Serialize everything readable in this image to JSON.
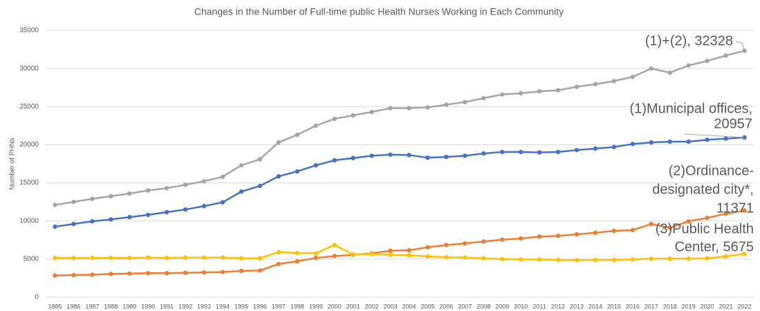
{
  "chart_data": {
    "type": "line",
    "title": "Changes in the Number of Full-time public Health Nurses Working in Each Community",
    "y_label": "Number of PHNs",
    "categories": [
      "1985",
      "1986",
      "1987",
      "1988",
      "1989",
      "1990",
      "1991",
      "1992",
      "1993",
      "1994",
      "1995",
      "1996",
      "1997",
      "1998",
      "1999",
      "2000",
      "2001",
      "2002",
      "2003",
      "2004",
      "2005",
      "2006",
      "2007",
      "2008",
      "2009",
      "2010",
      "2011",
      "2012",
      "2013",
      "2014",
      "2015",
      "2016",
      "2017",
      "2018",
      "2019",
      "2020",
      "2021",
      "2022"
    ],
    "series": [
      {
        "name": "(1)+(2)",
        "color": "#a5a5a5",
        "values": [
          12100,
          12500,
          12900,
          13250,
          13600,
          14000,
          14300,
          14750,
          15200,
          15800,
          17300,
          18100,
          20300,
          21300,
          22500,
          23400,
          23850,
          24300,
          24800,
          24800,
          24900,
          25250,
          25600,
          26100,
          26600,
          26750,
          27000,
          27150,
          27600,
          27950,
          28350,
          28900,
          30000,
          29450,
          30400,
          31000,
          31700,
          32328
        ]
      },
      {
        "name": "(1)Municipal offices",
        "color": "#4472c4",
        "values": [
          9250,
          9600,
          9950,
          10200,
          10500,
          10800,
          11150,
          11500,
          11950,
          12450,
          13850,
          14600,
          15850,
          16500,
          17300,
          17950,
          18250,
          18550,
          18700,
          18650,
          18300,
          18400,
          18550,
          18850,
          19050,
          19050,
          19000,
          19050,
          19300,
          19500,
          19700,
          20100,
          20300,
          20400,
          20400,
          20650,
          20800,
          20957
        ]
      },
      {
        "name": "(2)Ordinance-designated city*",
        "color": "#ed7d31",
        "values": [
          2850,
          2900,
          2950,
          3050,
          3100,
          3150,
          3150,
          3200,
          3250,
          3300,
          3450,
          3500,
          4350,
          4700,
          5150,
          5400,
          5550,
          5750,
          6100,
          6150,
          6550,
          6850,
          7050,
          7300,
          7550,
          7700,
          7950,
          8050,
          8250,
          8450,
          8700,
          8800,
          9600,
          9100,
          9950,
          10400,
          10950,
          11371
        ]
      },
      {
        "name": "(3)Public Health Center",
        "color": "#ffc000",
        "values": [
          5150,
          5150,
          5150,
          5150,
          5150,
          5200,
          5150,
          5200,
          5200,
          5200,
          5100,
          5100,
          5900,
          5800,
          5750,
          6850,
          5600,
          5650,
          5550,
          5500,
          5350,
          5250,
          5200,
          5100,
          5000,
          4950,
          4950,
          4900,
          4850,
          4900,
          4900,
          4950,
          5050,
          5050,
          5050,
          5100,
          5350,
          5675
        ]
      }
    ],
    "annotations": [
      [
        "(1)+(2), 32328"
      ],
      [
        "(1)Municipal offices,",
        "20957"
      ],
      [
        "(2)Ordinance-",
        "designated city*,",
        "11371"
      ],
      [
        "(3)Public Health",
        "Center, 5675"
      ]
    ],
    "ylim": [
      0,
      35000
    ],
    "yticks": [
      0,
      5000,
      10000,
      15000,
      20000,
      25000,
      30000,
      35000
    ],
    "grid": true
  }
}
